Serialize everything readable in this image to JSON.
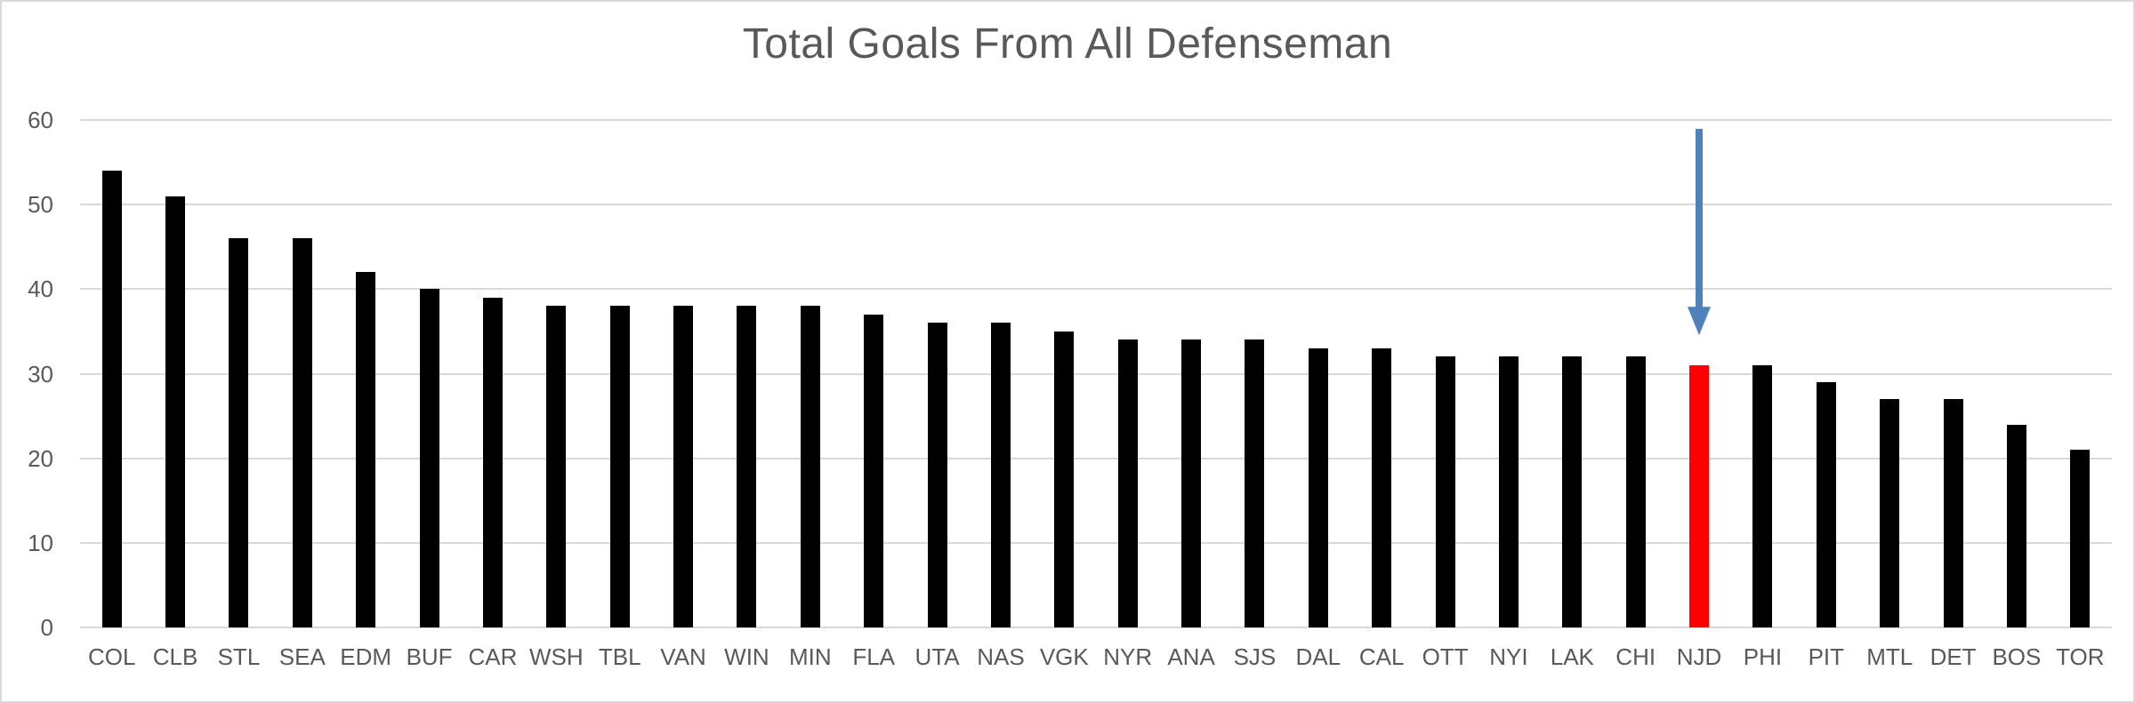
{
  "chart_data": {
    "type": "bar",
    "title": "Total Goals From All Defenseman",
    "categories": [
      "COL",
      "CLB",
      "STL",
      "SEA",
      "EDM",
      "BUF",
      "CAR",
      "WSH",
      "TBL",
      "VAN",
      "WIN",
      "MIN",
      "FLA",
      "UTA",
      "NAS",
      "VGK",
      "NYR",
      "ANA",
      "SJS",
      "DAL",
      "CAL",
      "OTT",
      "NYI",
      "LAK",
      "CHI",
      "NJD",
      "PHI",
      "PIT",
      "MTL",
      "DET",
      "BOS",
      "TOR"
    ],
    "values": [
      54,
      51,
      46,
      46,
      42,
      40,
      39,
      38,
      38,
      38,
      38,
      38,
      37,
      36,
      36,
      35,
      34,
      34,
      34,
      33,
      33,
      32,
      32,
      32,
      32,
      31,
      31,
      29,
      27,
      27,
      24,
      21
    ],
    "xlabel": "",
    "ylabel": "",
    "ylim": [
      0,
      60
    ],
    "yticks": [
      0,
      10,
      20,
      30,
      40,
      50,
      60
    ],
    "grid": "horizontal-only",
    "legend": "none",
    "bar_color": "#000000",
    "highlight": {
      "category": "NJD",
      "index": 25,
      "color": "#ff0000"
    },
    "annotation": {
      "shape": "down-arrow",
      "target_category": "NJD",
      "color": "#4f81bd",
      "from_value": 59,
      "to_value": 34.6
    },
    "title_color": "#595959",
    "axis_label_color": "#595959",
    "gridline_color": "#d9d9d9",
    "background_color": "#ffffff"
  }
}
